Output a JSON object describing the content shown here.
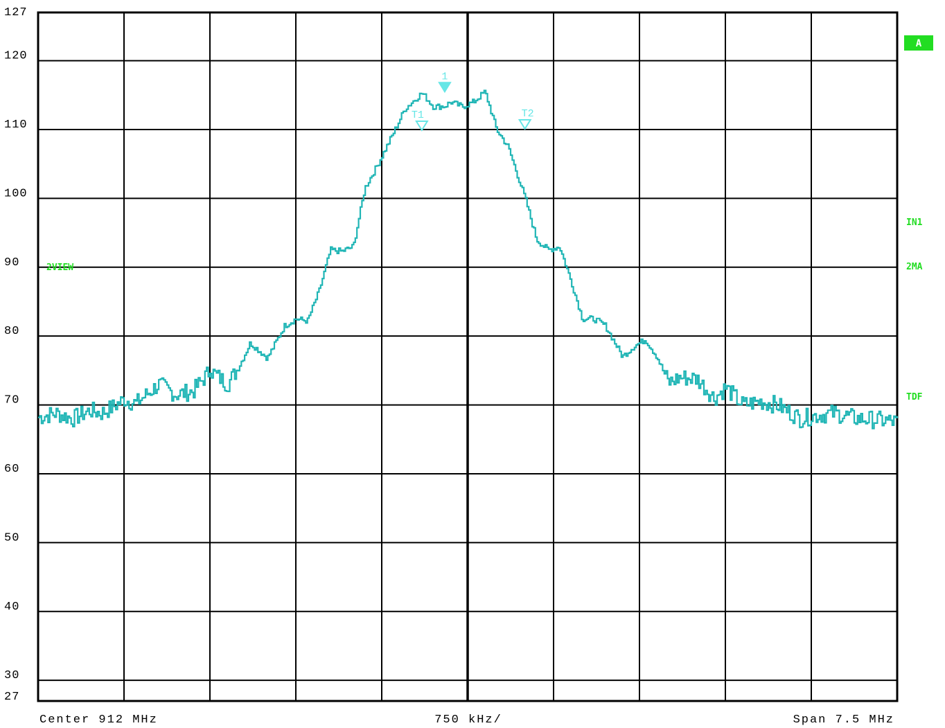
{
  "chart_data": {
    "type": "line",
    "title": "",
    "xlabel": "",
    "ylabel": "",
    "x_unit": "MHz",
    "xlim": [
      908.25,
      915.75
    ],
    "ylim": [
      27,
      127
    ],
    "y_ticks": [
      127,
      120,
      110,
      100,
      90,
      80,
      70,
      60,
      50,
      40,
      30,
      27
    ],
    "grid": true,
    "colors": {
      "trace": "#1fb5b5",
      "markers": "#66e6e6",
      "side_tags": "#22dd22",
      "tag_a_fill": "#22dd22"
    },
    "footer": {
      "center": "Center 912 MHz",
      "per_div": "750 kHz/",
      "span": "Span 7.5 MHz"
    },
    "side_tags": {
      "left": "2VIEW",
      "right_a": "A",
      "right_in1": "IN1",
      "right_2ma": "2MA",
      "right_tdf": "TDF"
    },
    "markers": [
      {
        "label": "1",
        "x": 911.8,
        "y": 115.3,
        "shape": "filled-triangle"
      },
      {
        "label": "T1",
        "x": 911.6,
        "y": 109.7,
        "shape": "open-triangle"
      },
      {
        "label": "T2",
        "x": 912.5,
        "y": 109.9,
        "shape": "open-triangle"
      }
    ],
    "series": [
      {
        "x": [
          908.25,
          908.4,
          908.55,
          908.7,
          908.8,
          908.9,
          909.0,
          909.1,
          909.3,
          909.45,
          909.6,
          909.75,
          909.9,
          910.0,
          910.1,
          910.25,
          910.4,
          910.5,
          910.6,
          910.7,
          910.8,
          910.9,
          911.0,
          911.1,
          911.2,
          911.35,
          911.45,
          911.6,
          911.7,
          911.8,
          911.85,
          911.95,
          912.05,
          912.15,
          912.25,
          912.35,
          912.5,
          912.6,
          912.7,
          912.8,
          912.9,
          913.0,
          913.1,
          913.2,
          913.35,
          913.45,
          913.55,
          913.65,
          913.75,
          913.85,
          914.0,
          914.15,
          914.25,
          914.4,
          914.55,
          914.7,
          914.9,
          915.05,
          915.2,
          915.4,
          915.6,
          915.75
        ],
        "y": [
          68.2,
          68.8,
          68.0,
          69.2,
          68.8,
          69.7,
          70.8,
          70.2,
          73.0,
          71.5,
          72.0,
          75.0,
          73.0,
          75.5,
          79.0,
          76.8,
          81.5,
          82.5,
          82.2,
          86.5,
          92.5,
          92.3,
          93.0,
          101.5,
          104.5,
          109.5,
          113.0,
          115.3,
          113.3,
          113.4,
          114.0,
          113.3,
          114.0,
          115.5,
          110.0,
          107.5,
          100.0,
          94.0,
          92.5,
          93.0,
          88.0,
          82.5,
          82.5,
          81.5,
          77.0,
          78.5,
          79.5,
          77.0,
          73.2,
          74.0,
          73.8,
          71.0,
          72.5,
          70.0,
          70.5,
          70.0,
          68.0,
          68.5,
          68.8,
          68.0,
          67.8,
          67.5
        ]
      }
    ]
  }
}
